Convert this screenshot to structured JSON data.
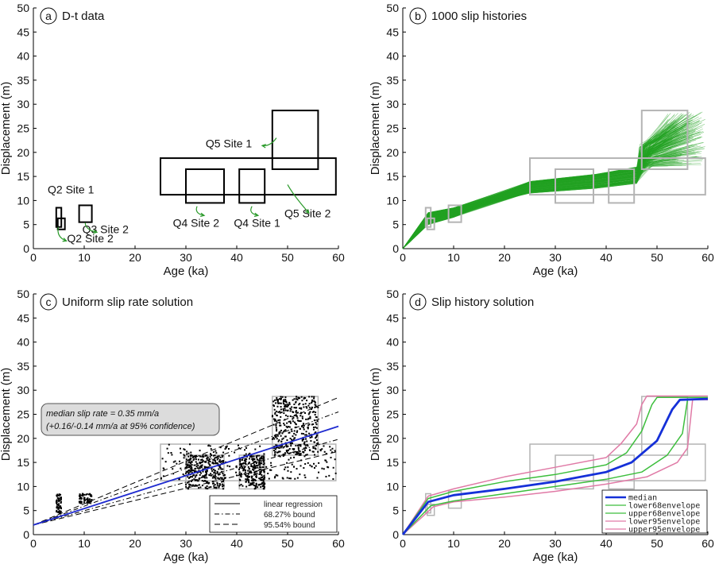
{
  "colors": {
    "box_black": "#000000",
    "box_gray": "#b4b4b4",
    "arrow_green": "#2a9a2a",
    "histories_green": "#22a322",
    "regression_blue": "#1f2bd0",
    "median_blue": "#1530d8",
    "env68_green": "#3cbe3c",
    "env95_pink": "#e07aa6"
  },
  "chart_data": [
    {
      "panel_letter": "a",
      "title": "D-t data",
      "type": "box",
      "xlabel": "Age (ka)",
      "ylabel": "Displacement (m)",
      "xlim": [
        0,
        60
      ],
      "ylim": [
        0,
        50
      ],
      "xticks": [
        0,
        10,
        20,
        30,
        40,
        50,
        60
      ],
      "yticks": [
        0,
        5,
        10,
        15,
        20,
        25,
        30,
        35,
        40,
        45,
        50
      ],
      "boxes": [
        {
          "name": "Q2 Site 1",
          "x": [
            4.5,
            5.5
          ],
          "y": [
            4.5,
            8.5
          ]
        },
        {
          "name": "Q2 Site 2",
          "x": [
            4.8,
            6.2
          ],
          "y": [
            4,
            6.3
          ]
        },
        {
          "name": "Q3 Site 2",
          "x": [
            9,
            11.5
          ],
          "y": [
            5.5,
            9
          ]
        },
        {
          "name": "Q4 Site 2",
          "x": [
            30,
            37.5
          ],
          "y": [
            9.5,
            16.5
          ]
        },
        {
          "name": "Q4 Site 1",
          "x": [
            40.5,
            45.5
          ],
          "y": [
            9.5,
            16.5
          ]
        },
        {
          "name": "Q5 Site 1",
          "x": [
            47,
            56
          ],
          "y": [
            16.5,
            28.7
          ]
        },
        {
          "name": "Q5 Site 2",
          "x": [
            25,
            59.5
          ],
          "y": [
            11.2,
            18.8
          ]
        }
      ],
      "annotations": [
        {
          "text": "Q2 Site 1",
          "at": [
            7.5,
            11.5
          ]
        },
        {
          "text": "Q2 Site 2",
          "at": [
            13.5,
            1.3
          ]
        },
        {
          "text": "Q3 Site 2",
          "at": [
            19,
            3.2
          ]
        },
        {
          "text": "Q4 Site 2",
          "at": [
            32,
            4.5
          ]
        },
        {
          "text": "Q4 Site 1",
          "at": [
            44,
            4.5
          ]
        },
        {
          "text": "Q5 Site 1",
          "at": [
            43,
            21
          ]
        },
        {
          "text": "Q5 Site 2",
          "at": [
            58.5,
            6.5
          ]
        }
      ]
    },
    {
      "panel_letter": "b",
      "title": "1000 slip histories",
      "type": "line",
      "xlabel": "Age (ka)",
      "ylabel": "Displacement (m)",
      "xlim": [
        0,
        60
      ],
      "ylim": [
        0,
        50
      ],
      "xticks": [
        0,
        10,
        20,
        30,
        40,
        50,
        60
      ],
      "yticks": [
        0,
        5,
        10,
        15,
        20,
        25,
        30,
        35,
        40,
        45,
        50
      ],
      "histories_count": 1000,
      "series": [
        {
          "x": [
            0,
            5,
            10,
            25,
            38,
            46,
            48,
            56
          ],
          "y_min": [
            0,
            5,
            6.5,
            11.5,
            12.5,
            13.5,
            17,
            17
          ],
          "y_max": [
            0,
            7.5,
            8.5,
            14,
            15.5,
            17,
            22,
            28.5
          ]
        }
      ],
      "boxes": [
        {
          "x": [
            4.5,
            5.5
          ],
          "y": [
            4.5,
            8.5
          ]
        },
        {
          "x": [
            4.8,
            6.2
          ],
          "y": [
            4,
            6.3
          ]
        },
        {
          "x": [
            9,
            11.5
          ],
          "y": [
            5.5,
            9
          ]
        },
        {
          "x": [
            30,
            37.5
          ],
          "y": [
            9.5,
            16.5
          ]
        },
        {
          "x": [
            40.5,
            45.5
          ],
          "y": [
            9.5,
            16.5
          ]
        },
        {
          "x": [
            47,
            56
          ],
          "y": [
            16.5,
            28.7
          ]
        },
        {
          "x": [
            25,
            59.5
          ],
          "y": [
            11.2,
            18.8
          ]
        }
      ]
    },
    {
      "panel_letter": "c",
      "title": "Uniform slip rate solution",
      "type": "scatter",
      "xlabel": "Age (ka)",
      "ylabel": "Displacement (m)",
      "xlim": [
        0,
        60
      ],
      "ylim": [
        0,
        50
      ],
      "xticks": [
        0,
        10,
        20,
        30,
        40,
        50,
        60
      ],
      "yticks": [
        0,
        5,
        10,
        15,
        20,
        25,
        30,
        35,
        40,
        45,
        50
      ],
      "note_line1": "median slip rate = 0.35 mm/a",
      "note_line2": "(+0.16/-0.14 mm/a at 95% confidence)",
      "regression": {
        "x": [
          0,
          60
        ],
        "y": [
          2,
          22.5
        ]
      },
      "bound68": [
        {
          "x": [
            0,
            60
          ],
          "y": [
            2,
            25.5
          ]
        },
        {
          "x": [
            0,
            60
          ],
          "y": [
            2,
            19.8
          ]
        }
      ],
      "bound95": [
        {
          "x": [
            0,
            60
          ],
          "y": [
            2,
            28.5
          ]
        },
        {
          "x": [
            0,
            60
          ],
          "y": [
            2,
            17.3
          ]
        }
      ],
      "legend": [
        "linear regression",
        "68.27% bound",
        "95.54% bound"
      ],
      "point_clusters": [
        {
          "x": [
            4.5,
            5.5
          ],
          "y": [
            4.5,
            8.5
          ],
          "n": 60
        },
        {
          "x": [
            9,
            11.5
          ],
          "y": [
            6.5,
            8.5
          ],
          "n": 70
        },
        {
          "x": [
            25,
            59.5
          ],
          "y": [
            11.5,
            18.8
          ],
          "n": 240
        },
        {
          "x": [
            30,
            37.5
          ],
          "y": [
            9.5,
            16.5
          ],
          "n": 280
        },
        {
          "x": [
            40.5,
            45.5
          ],
          "y": [
            9.5,
            16.5
          ],
          "n": 220
        },
        {
          "x": [
            47,
            56
          ],
          "y": [
            16.5,
            28.7
          ],
          "n": 380
        }
      ],
      "boxes": [
        {
          "x": [
            25,
            59.5
          ],
          "y": [
            11.2,
            18.8
          ]
        },
        {
          "x": [
            30,
            37.5
          ],
          "y": [
            9.5,
            16.5
          ]
        },
        {
          "x": [
            40.5,
            45.5
          ],
          "y": [
            9.5,
            16.5
          ]
        },
        {
          "x": [
            47,
            56
          ],
          "y": [
            16.5,
            28.7
          ]
        }
      ]
    },
    {
      "panel_letter": "d",
      "title": "Slip history solution",
      "type": "line",
      "xlabel": "Age (ka)",
      "ylabel": "Displacement (m)",
      "xlim": [
        0,
        60
      ],
      "ylim": [
        0,
        50
      ],
      "xticks": [
        0,
        10,
        20,
        30,
        40,
        50,
        60
      ],
      "yticks": [
        0,
        5,
        10,
        15,
        20,
        25,
        30,
        35,
        40,
        45,
        50
      ],
      "series": [
        {
          "name": "median",
          "x": [
            0,
            5,
            10,
            20,
            30,
            40,
            45,
            50,
            53,
            54.5,
            60
          ],
          "y": [
            0,
            6.8,
            8.2,
            9.5,
            11,
            13,
            15,
            19.5,
            26,
            28,
            28.2
          ]
        },
        {
          "name": "lower68envelope",
          "x": [
            0,
            5.5,
            10,
            20,
            30,
            40,
            47,
            52,
            55,
            56,
            60
          ],
          "y": [
            0,
            6,
            7,
            8.5,
            10,
            11.5,
            13,
            16.5,
            21,
            28,
            28.2
          ]
        },
        {
          "name": "upper68envelope",
          "x": [
            0,
            5,
            10,
            20,
            30,
            40,
            44,
            47,
            49,
            50,
            60
          ],
          "y": [
            0,
            7.5,
            9,
            11,
            12.5,
            14.5,
            17,
            21.5,
            27,
            28.5,
            28.5
          ]
        },
        {
          "name": "lower95envelope",
          "x": [
            0,
            6,
            10,
            20,
            30,
            40,
            48,
            54,
            56,
            57,
            60
          ],
          "y": [
            0,
            5.8,
            6.8,
            7.8,
            9,
            10.5,
            12,
            15,
            18,
            28,
            28
          ]
        },
        {
          "name": "upper95envelope",
          "x": [
            0,
            5,
            10,
            20,
            30,
            40,
            43,
            46,
            47,
            48,
            60
          ],
          "y": [
            0,
            8,
            9.5,
            12,
            14,
            16,
            19,
            23,
            27,
            28.8,
            28.8
          ]
        }
      ],
      "boxes": [
        {
          "x": [
            4.5,
            5.5
          ],
          "y": [
            4.5,
            8.5
          ]
        },
        {
          "x": [
            4.8,
            6.2
          ],
          "y": [
            4,
            6.3
          ]
        },
        {
          "x": [
            9,
            11.5
          ],
          "y": [
            5.5,
            9
          ]
        },
        {
          "x": [
            30,
            37.5
          ],
          "y": [
            9.5,
            16.5
          ]
        },
        {
          "x": [
            40.5,
            45.5
          ],
          "y": [
            9.5,
            16.5
          ]
        },
        {
          "x": [
            47,
            56
          ],
          "y": [
            16.5,
            28.7
          ]
        },
        {
          "x": [
            25,
            59.5
          ],
          "y": [
            11.2,
            18.8
          ]
        }
      ],
      "legend": [
        "median",
        "lower68envelope",
        "upper68envelope",
        "lower95envelope",
        "upper95envelope"
      ]
    }
  ]
}
